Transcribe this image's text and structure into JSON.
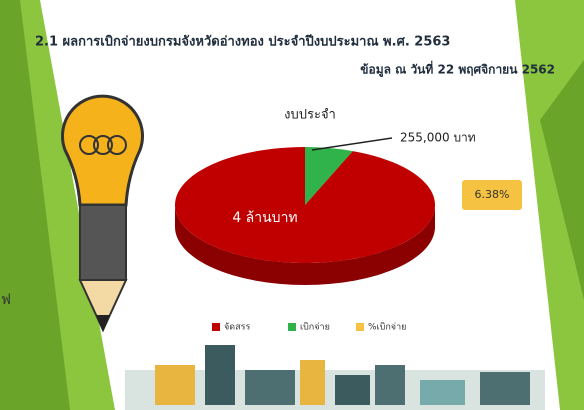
{
  "chart_data": {
    "type": "pie",
    "title": "2.1 ผลการเบิกจ่ายงบกรมจังหวัดอ่างทอง  ประจำปีงบประมาณ พ.ศ. 2563",
    "subtitle": "ข้อมูล ณ วันที่ 22 พฤศจิกายน 2562",
    "annotation": "งบประจำ",
    "categories": [
      "จัดสรร",
      "เบิกจ่าย"
    ],
    "values": [
      4000000,
      255000
    ],
    "value_labels": [
      "4 ล้านบาท",
      "255,000 บาท"
    ],
    "colors": [
      "#c00000",
      "#2fb34a"
    ],
    "rate": {
      "label": "%เบิกจ่าย",
      "value": 6.38,
      "value_label": "6.38%",
      "color": "#f5c242"
    },
    "side_text": "ฟ"
  }
}
